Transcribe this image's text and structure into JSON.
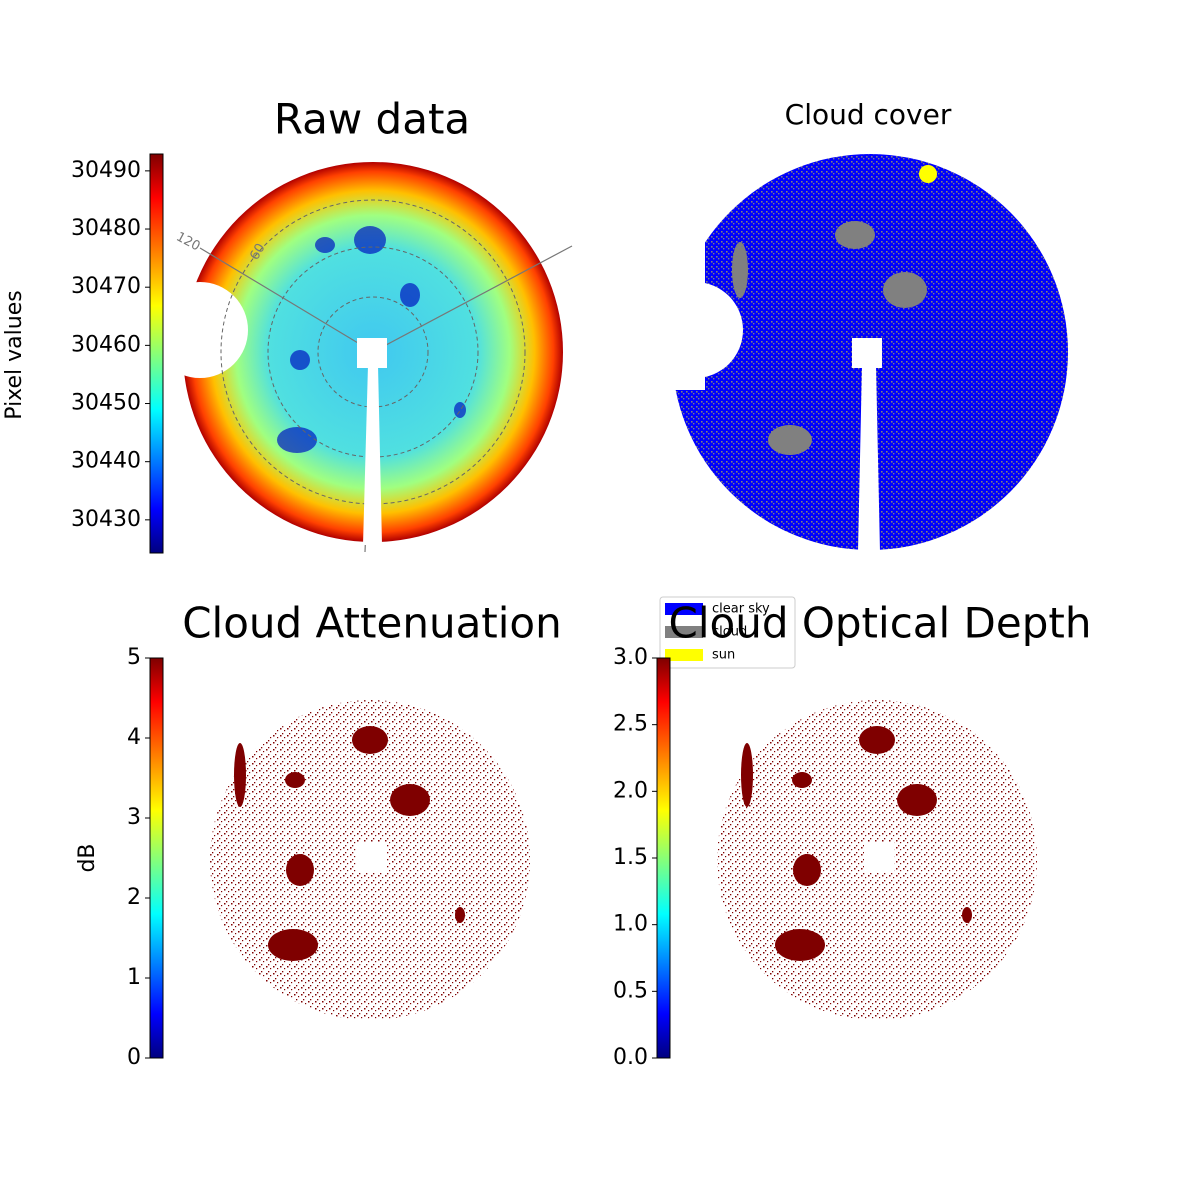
{
  "chart_data": [
    {
      "type": "image",
      "title": "Raw data",
      "colorbar_label": "Pixel values",
      "ylim": [
        30424.3,
        30492.9
      ],
      "yticks": [
        30430,
        30440,
        30450,
        30460,
        30470,
        30480,
        30490
      ],
      "annotations": [
        "120",
        "60"
      ]
    },
    {
      "type": "image",
      "title": "Cloud cover",
      "legend": [
        {
          "name": "clear sky",
          "color": "#0000ff"
        },
        {
          "name": "cloud",
          "color": "#808080"
        },
        {
          "name": "sun",
          "color": "#ffff00"
        }
      ]
    },
    {
      "type": "image",
      "title": "Cloud Attenuation",
      "colorbar_label": "dB",
      "ylim": [
        0,
        5
      ],
      "yticks": [
        0,
        1,
        2,
        3,
        4,
        5
      ]
    },
    {
      "type": "image",
      "title": "Cloud Optical Depth",
      "ylim": [
        0,
        3
      ],
      "yticks": [
        {
          "value": 0,
          "label": "0.0"
        },
        {
          "value": 0.5,
          "label": "0.5"
        },
        {
          "value": 1,
          "label": "1.0"
        },
        {
          "value": 1.5,
          "label": "1.5"
        },
        {
          "value": 2,
          "label": "2.0"
        },
        {
          "value": 2.5,
          "label": "2.5"
        },
        {
          "value": 3,
          "label": "3.0"
        }
      ]
    }
  ]
}
